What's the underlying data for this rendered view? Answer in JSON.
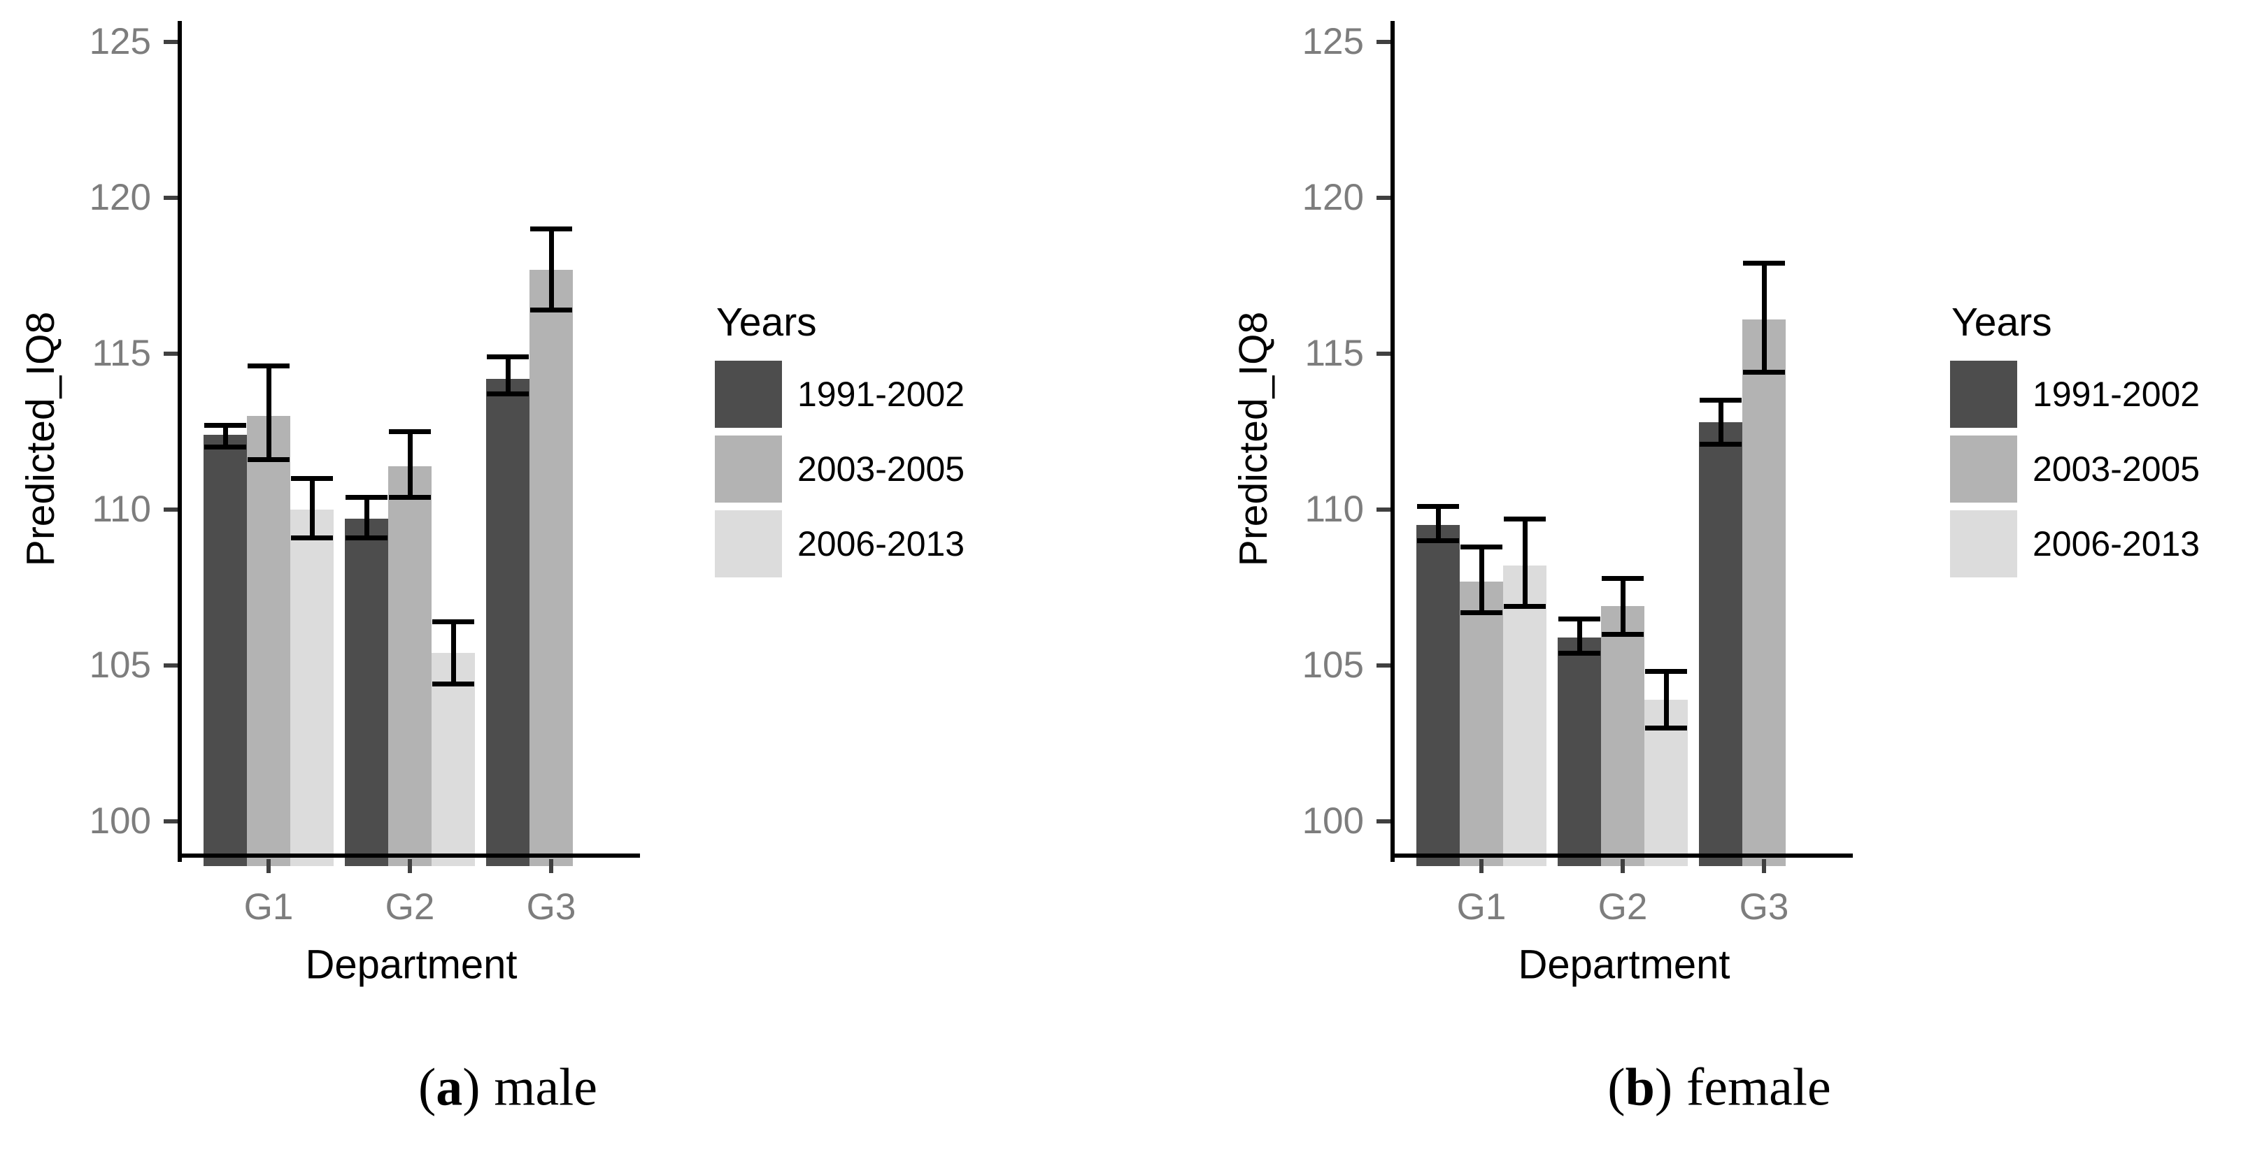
{
  "figure": {
    "captions": [
      {
        "prefix": "(",
        "letter": "a",
        "suffix": ")",
        "label": "male"
      },
      {
        "prefix": "(",
        "letter": "b",
        "suffix": ")",
        "label": "female"
      }
    ]
  },
  "colors": {
    "series_dark": "#4d4d4d",
    "series_mid": "#b3b3b3",
    "series_light": "#dcdcdc",
    "axis": "#000000",
    "tick_label_text": "#7d7d7d",
    "error_bar": "#000000",
    "background": "#ffffff"
  },
  "chart_data": [
    {
      "type": "bar",
      "panel": "a",
      "caption": "(a) male",
      "xlabel": "Department",
      "ylabel": "Predicted_IQ8",
      "categories": [
        "G1",
        "G2",
        "G3"
      ],
      "y_ticks": [
        100,
        105,
        110,
        115,
        120,
        125
      ],
      "ylim": [
        98.8,
        126.2
      ],
      "grid": false,
      "legend": {
        "title": "Years",
        "position": "right",
        "entries": [
          "1991-2002",
          "2003-2005",
          "2006-2013"
        ]
      },
      "series": [
        {
          "name": "1991-2002",
          "color": "#4d4d4d",
          "values": [
            112.4,
            109.7,
            114.2
          ],
          "err_low": [
            112.0,
            109.1,
            113.7
          ],
          "err_high": [
            112.7,
            110.4,
            114.9
          ]
        },
        {
          "name": "2003-2005",
          "color": "#b3b3b3",
          "values": [
            113.0,
            111.4,
            117.7
          ],
          "err_low": [
            111.6,
            110.4,
            116.4
          ],
          "err_high": [
            114.6,
            112.5,
            119.0
          ]
        },
        {
          "name": "2006-2013",
          "color": "#dcdcdc",
          "values": [
            110.0,
            105.4,
            null
          ],
          "err_low": [
            109.1,
            104.4,
            null
          ],
          "err_high": [
            111.0,
            106.4,
            null
          ]
        }
      ]
    },
    {
      "type": "bar",
      "panel": "b",
      "caption": "(b) female",
      "xlabel": "Department",
      "ylabel": "Predicted_IQ8",
      "categories": [
        "G1",
        "G2",
        "G3"
      ],
      "y_ticks": [
        100,
        105,
        110,
        115,
        120,
        125
      ],
      "ylim": [
        98.8,
        126.2
      ],
      "grid": false,
      "legend": {
        "title": "Years",
        "position": "right",
        "entries": [
          "1991-2002",
          "2003-2005",
          "2006-2013"
        ]
      },
      "series": [
        {
          "name": "1991-2002",
          "color": "#4d4d4d",
          "values": [
            109.5,
            105.9,
            112.8
          ],
          "err_low": [
            109.0,
            105.4,
            112.1
          ],
          "err_high": [
            110.1,
            106.5,
            113.5
          ]
        },
        {
          "name": "2003-2005",
          "color": "#b3b3b3",
          "values": [
            107.7,
            106.9,
            116.1
          ],
          "err_low": [
            106.7,
            106.0,
            114.4
          ],
          "err_high": [
            108.8,
            107.8,
            117.9
          ]
        },
        {
          "name": "2006-2013",
          "color": "#dcdcdc",
          "values": [
            108.2,
            103.9,
            null
          ],
          "err_low": [
            106.9,
            103.0,
            null
          ],
          "err_high": [
            109.7,
            104.8,
            null
          ]
        }
      ]
    }
  ]
}
